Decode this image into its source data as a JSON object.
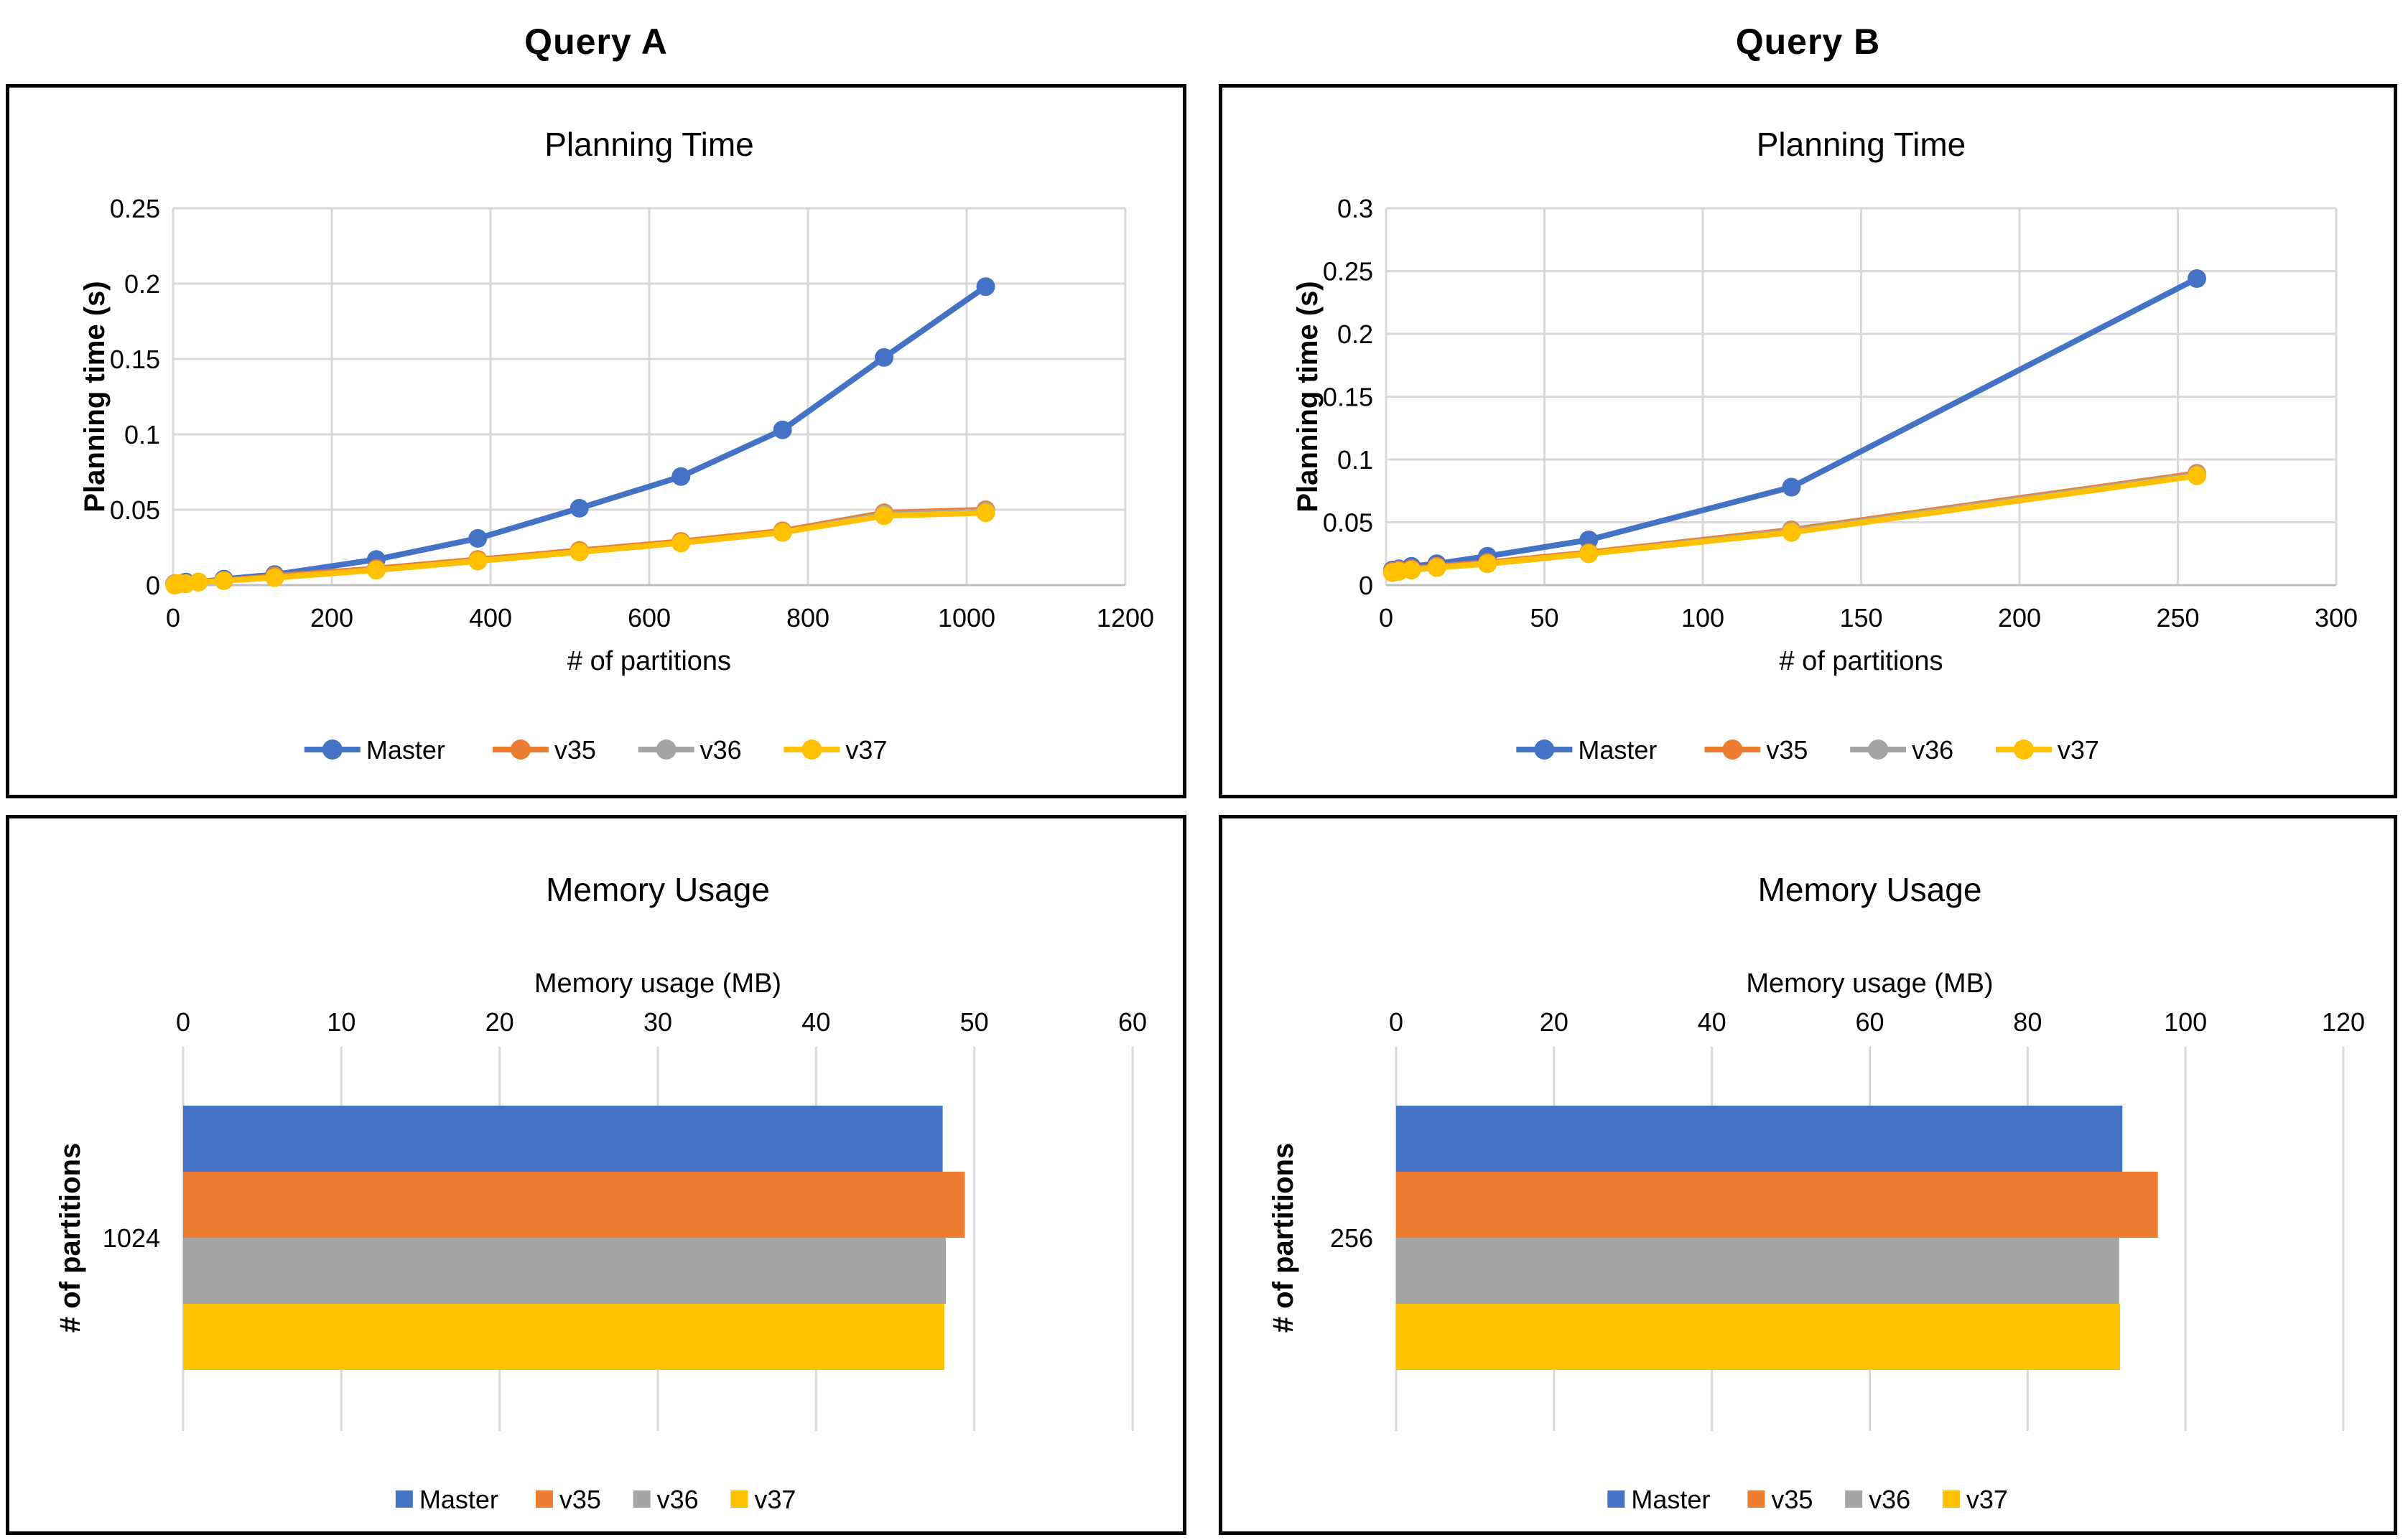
{
  "palette": {
    "master": "#4472C4",
    "v35": "#ED7D31",
    "v36": "#A5A5A5",
    "v37": "#FFC000",
    "gridline": "#D9D9D9",
    "axis_line": "#BFBFBF",
    "text": "#000000",
    "panel_border": "#000000",
    "background": "#FFFFFF"
  },
  "columns": [
    {
      "title": "Query A"
    },
    {
      "title": "Query B"
    }
  ],
  "series_names": [
    "Master",
    "v35",
    "v36",
    "v37"
  ],
  "chart_data": [
    {
      "id": "query-a-planning",
      "type": "line",
      "title": "Planning Time",
      "xlabel": "# of partitions",
      "ylabel": "Planning time (s)",
      "x": [
        2,
        4,
        8,
        16,
        32,
        64,
        128,
        256,
        384,
        512,
        640,
        768,
        896,
        1024
      ],
      "series": [
        {
          "name": "Master",
          "color_key": "master",
          "values": [
            0.001,
            0.001,
            0.001,
            0.002,
            0.002,
            0.004,
            0.007,
            0.017,
            0.031,
            0.051,
            0.072,
            0.103,
            0.151,
            0.198
          ]
        },
        {
          "name": "v35",
          "color_key": "v35",
          "values": [
            0.001,
            0.001,
            0.001,
            0.001,
            0.002,
            0.003,
            0.006,
            0.011,
            0.017,
            0.023,
            0.029,
            0.036,
            0.048,
            0.05
          ]
        },
        {
          "name": "v36",
          "color_key": "v36",
          "values": [
            0.001,
            0.001,
            0.001,
            0.001,
            0.002,
            0.003,
            0.005,
            0.01,
            0.016,
            0.022,
            0.028,
            0.035,
            0.047,
            0.049
          ]
        },
        {
          "name": "v37",
          "color_key": "v37",
          "values": [
            0.0,
            0.001,
            0.001,
            0.001,
            0.002,
            0.003,
            0.005,
            0.01,
            0.016,
            0.022,
            0.028,
            0.035,
            0.046,
            0.048
          ]
        }
      ],
      "xlim": [
        0,
        1200
      ],
      "ylim": [
        0,
        0.25
      ],
      "xticks": [
        0,
        200,
        400,
        600,
        800,
        1000,
        1200
      ],
      "xtick_labels": [
        "0",
        "200",
        "400",
        "600",
        "800",
        "1000",
        "1200"
      ],
      "yticks": [
        0,
        0.05,
        0.1,
        0.15,
        0.2,
        0.25
      ],
      "ytick_labels": [
        "0",
        "0.05",
        "0.1",
        "0.15",
        "0.2",
        "0.25"
      ],
      "grid": true,
      "legend_position": "bottom",
      "legend": [
        "Master",
        "v35",
        "v36",
        "v37"
      ]
    },
    {
      "id": "query-b-planning",
      "type": "line",
      "title": "Planning Time",
      "xlabel": "# of partitions",
      "ylabel": "Planning time (s)",
      "x": [
        2,
        4,
        8,
        16,
        32,
        64,
        128,
        256
      ],
      "series": [
        {
          "name": "Master",
          "color_key": "master",
          "values": [
            0.012,
            0.013,
            0.015,
            0.017,
            0.023,
            0.036,
            0.078,
            0.244
          ]
        },
        {
          "name": "v35",
          "color_key": "v35",
          "values": [
            0.011,
            0.012,
            0.013,
            0.015,
            0.018,
            0.026,
            0.044,
            0.089
          ]
        },
        {
          "name": "v36",
          "color_key": "v36",
          "values": [
            0.01,
            0.011,
            0.012,
            0.014,
            0.017,
            0.025,
            0.043,
            0.088
          ]
        },
        {
          "name": "v37",
          "color_key": "v37",
          "values": [
            0.01,
            0.011,
            0.012,
            0.014,
            0.017,
            0.025,
            0.042,
            0.087
          ]
        }
      ],
      "xlim": [
        0,
        300
      ],
      "ylim": [
        0,
        0.3
      ],
      "xticks": [
        0,
        50,
        100,
        150,
        200,
        250,
        300
      ],
      "xtick_labels": [
        "0",
        "50",
        "100",
        "150",
        "200",
        "250",
        "300"
      ],
      "yticks": [
        0,
        0.05,
        0.1,
        0.15,
        0.2,
        0.25,
        0.3
      ],
      "ytick_labels": [
        "0",
        "0.05",
        "0.1",
        "0.15",
        "0.2",
        "0.25",
        "0.3"
      ],
      "grid": true,
      "legend_position": "bottom",
      "legend": [
        "Master",
        "v35",
        "v36",
        "v37"
      ]
    },
    {
      "id": "query-a-memory",
      "type": "bar",
      "orientation": "horizontal",
      "title": "Memory Usage",
      "xlabel": "Memory usage (MB)",
      "ylabel": "# of partitions",
      "categories": [
        "1024"
      ],
      "series": [
        {
          "name": "Master",
          "color_key": "master",
          "values": [
            48
          ]
        },
        {
          "name": "v35",
          "color_key": "v35",
          "values": [
            49.4
          ]
        },
        {
          "name": "v36",
          "color_key": "v36",
          "values": [
            48.2
          ]
        },
        {
          "name": "v37",
          "color_key": "v37",
          "values": [
            48.1
          ]
        }
      ],
      "xlim": [
        0,
        60
      ],
      "xticks": [
        0,
        10,
        20,
        30,
        40,
        50,
        60
      ],
      "xtick_labels": [
        "0",
        "10",
        "20",
        "30",
        "40",
        "50",
        "60"
      ],
      "grid": true,
      "legend_position": "bottom",
      "legend": [
        "Master",
        "v35",
        "v36",
        "v37"
      ]
    },
    {
      "id": "query-b-memory",
      "type": "bar",
      "orientation": "horizontal",
      "title": "Memory Usage",
      "xlabel": "Memory usage (MB)",
      "ylabel": "# of partitions",
      "categories": [
        "256"
      ],
      "series": [
        {
          "name": "Master",
          "color_key": "master",
          "values": [
            92
          ]
        },
        {
          "name": "v35",
          "color_key": "v35",
          "values": [
            96.5
          ]
        },
        {
          "name": "v36",
          "color_key": "v36",
          "values": [
            91.6
          ]
        },
        {
          "name": "v37",
          "color_key": "v37",
          "values": [
            91.7
          ]
        }
      ],
      "xlim": [
        0,
        120
      ],
      "xticks": [
        0,
        20,
        40,
        60,
        80,
        100,
        120
      ],
      "xtick_labels": [
        "0",
        "20",
        "40",
        "60",
        "80",
        "100",
        "120"
      ],
      "grid": true,
      "legend_position": "bottom",
      "legend": [
        "Master",
        "v35",
        "v36",
        "v37"
      ]
    }
  ]
}
